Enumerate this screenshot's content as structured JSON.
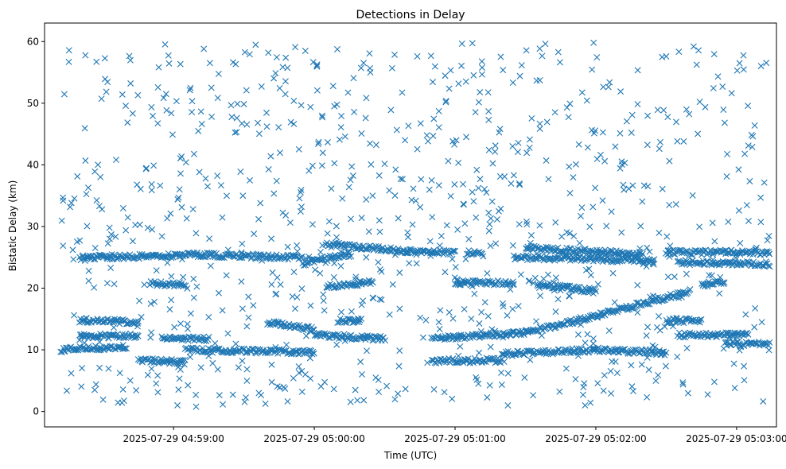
{
  "chart_data": {
    "type": "scatter",
    "title": "Detections in Delay",
    "xlabel": "Time (UTC)",
    "ylabel": "Bistatic Delay (km)",
    "marker": "x",
    "color": "#1f77b4",
    "xlim": [
      "2025-07-29 04:58:05",
      "2025-07-29 05:03:17"
    ],
    "ylim": [
      -2.5,
      63
    ],
    "x_ticks": [
      "2025-07-29 04:59:00",
      "2025-07-29 05:00:00",
      "2025-07-29 05:01:00",
      "2025-07-29 05:02:00",
      "2025-07-29 05:03:00"
    ],
    "y_ticks": [
      0,
      10,
      20,
      30,
      40,
      50,
      60
    ],
    "time_range": [
      "2025-07-29 04:58:12",
      "2025-07-29 05:03:14"
    ],
    "tracks": [
      {
        "from": [
          "2025-07-29 04:58:20",
          24.9
        ],
        "to": [
          "2025-07-29 04:59:10",
          25.4
        ]
      },
      {
        "from": [
          "2025-07-29 04:59:10",
          25.4
        ],
        "to": [
          "2025-07-29 04:59:55",
          25.0
        ]
      },
      {
        "from": [
          "2025-07-29 04:59:55",
          24.0
        ],
        "to": [
          "2025-07-29 05:00:15",
          25.5
        ]
      },
      {
        "from": [
          "2025-07-29 05:00:05",
          27.1
        ],
        "to": [
          "2025-07-29 05:00:40",
          26.0
        ]
      },
      {
        "from": [
          "2025-07-29 05:00:40",
          26.0
        ],
        "to": [
          "2025-07-29 05:01:00",
          25.8
        ]
      },
      {
        "from": [
          "2025-07-29 05:01:05",
          25.8
        ],
        "to": [
          "2025-07-29 05:01:12",
          25.5
        ]
      },
      {
        "from": [
          "2025-07-29 05:01:25",
          25.0
        ],
        "to": [
          "2025-07-29 05:02:25",
          24.5
        ]
      },
      {
        "from": [
          "2025-07-29 05:01:30",
          26.5
        ],
        "to": [
          "2025-07-29 05:02:20",
          25.5
        ]
      },
      {
        "from": [
          "2025-07-29 05:02:30",
          25.8
        ],
        "to": [
          "2025-07-29 05:03:14",
          25.8
        ]
      },
      {
        "from": [
          "2025-07-29 05:02:35",
          24.2
        ],
        "to": [
          "2025-07-29 05:03:14",
          23.9
        ]
      },
      {
        "from": [
          "2025-07-29 04:58:50",
          20.8
        ],
        "to": [
          "2025-07-29 04:59:05",
          20.5
        ]
      },
      {
        "from": [
          "2025-07-29 05:00:05",
          20.3
        ],
        "to": [
          "2025-07-29 05:00:25",
          21.0
        ]
      },
      {
        "from": [
          "2025-07-29 05:01:00",
          20.9
        ],
        "to": [
          "2025-07-29 05:01:25",
          20.8
        ]
      },
      {
        "from": [
          "2025-07-29 05:01:35",
          20.6
        ],
        "to": [
          "2025-07-29 05:02:00",
          19.5
        ]
      },
      {
        "from": [
          "2025-07-29 05:02:45",
          20.5
        ],
        "to": [
          "2025-07-29 05:02:55",
          21.0
        ]
      },
      {
        "from": [
          "2025-07-29 04:58:20",
          14.8
        ],
        "to": [
          "2025-07-29 04:58:45",
          14.5
        ]
      },
      {
        "from": [
          "2025-07-29 04:59:40",
          14.5
        ],
        "to": [
          "2025-07-29 05:00:00",
          13.3
        ]
      },
      {
        "from": [
          "2025-07-29 05:00:10",
          14.7
        ],
        "to": [
          "2025-07-29 05:00:20",
          14.7
        ]
      },
      {
        "from": [
          "2025-07-29 05:02:30",
          14.7
        ],
        "to": [
          "2025-07-29 05:02:45",
          14.7
        ]
      },
      {
        "from": [
          "2025-07-29 05:00:00",
          12.4
        ],
        "to": [
          "2025-07-29 05:00:30",
          11.8
        ]
      },
      {
        "from": [
          "2025-07-29 04:58:20",
          12.2
        ],
        "to": [
          "2025-07-29 04:58:45",
          12.3
        ]
      },
      {
        "from": [
          "2025-07-29 04:58:55",
          12.0
        ],
        "to": [
          "2025-07-29 04:59:15",
          11.8
        ]
      },
      {
        "from": [
          "2025-07-29 05:00:50",
          11.8
        ],
        "to": [
          "2025-07-29 05:01:30",
          12.8
        ]
      },
      {
        "from": [
          "2025-07-29 05:01:30",
          12.8
        ],
        "to": [
          "2025-07-29 05:02:05",
          16.0
        ]
      },
      {
        "from": [
          "2025-07-29 05:02:05",
          16.0
        ],
        "to": [
          "2025-07-29 05:02:40",
          19.5
        ]
      },
      {
        "from": [
          "2025-07-29 05:02:35",
          12.4
        ],
        "to": [
          "2025-07-29 05:03:05",
          12.5
        ]
      },
      {
        "from": [
          "2025-07-29 04:58:12",
          10.0
        ],
        "to": [
          "2025-07-29 04:58:40",
          10.5
        ]
      },
      {
        "from": [
          "2025-07-29 04:59:05",
          10.0
        ],
        "to": [
          "2025-07-29 05:00:00",
          9.6
        ]
      },
      {
        "from": [
          "2025-07-29 05:01:20",
          9.3
        ],
        "to": [
          "2025-07-29 05:02:00",
          10.0
        ]
      },
      {
        "from": [
          "2025-07-29 05:02:00",
          10.0
        ],
        "to": [
          "2025-07-29 05:02:30",
          9.5
        ]
      },
      {
        "from": [
          "2025-07-29 05:02:55",
          11.0
        ],
        "to": [
          "2025-07-29 05:03:14",
          11.0
        ]
      },
      {
        "from": [
          "2025-07-29 05:00:50",
          8.2
        ],
        "to": [
          "2025-07-29 05:01:20",
          8.3
        ]
      },
      {
        "from": [
          "2025-07-29 04:58:45",
          8.3
        ],
        "to": [
          "2025-07-29 04:59:05",
          8.0
        ]
      }
    ]
  }
}
